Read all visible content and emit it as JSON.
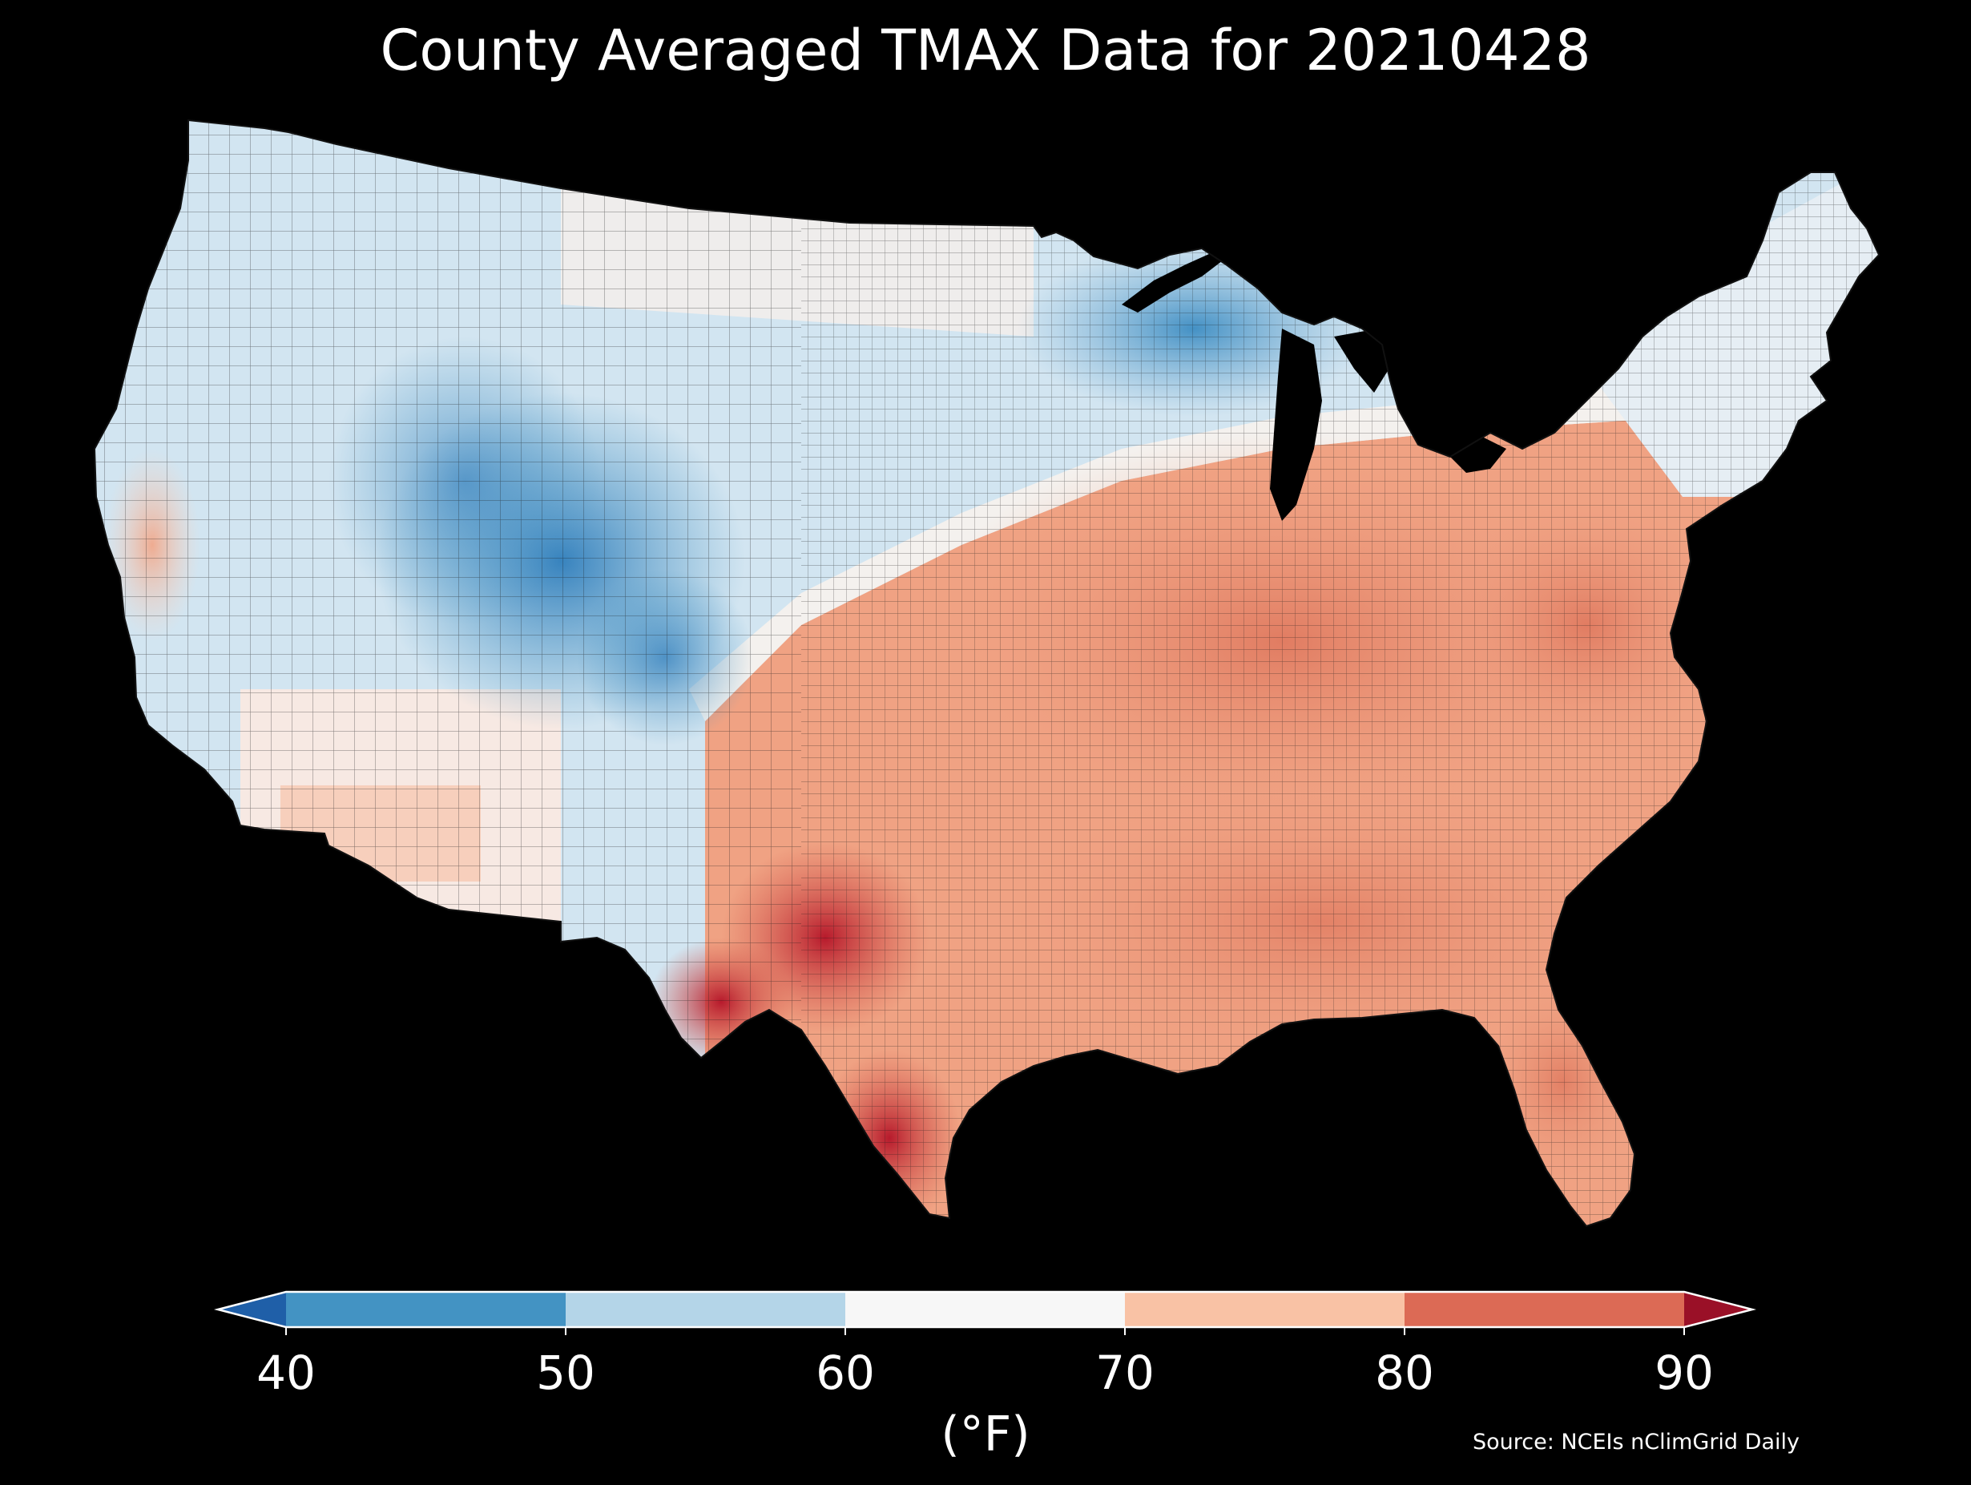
{
  "title": "County Averaged TMAX Data for 20210428",
  "map": {
    "region": "Contiguous United States",
    "unit": "county",
    "background_color": "#000000",
    "border_color": "#1a1a1a"
  },
  "colorbar": {
    "ticks": [
      "40",
      "50",
      "60",
      "70",
      "80",
      "90"
    ],
    "bins": [
      {
        "range": [
          40,
          50
        ],
        "color": "#4393c3"
      },
      {
        "range": [
          50,
          60
        ],
        "color": "#b4d5e8"
      },
      {
        "range": [
          60,
          70
        ],
        "color": "#f7f7f7"
      },
      {
        "range": [
          70,
          80
        ],
        "color": "#f9c2a5"
      },
      {
        "range": [
          80,
          90
        ],
        "color": "#dc6a55"
      }
    ],
    "under_color": "#1f5fa8",
    "over_color": "#9a1027",
    "units": "(°F)"
  },
  "source": "Source: NCEIs nClimGrid Daily"
}
